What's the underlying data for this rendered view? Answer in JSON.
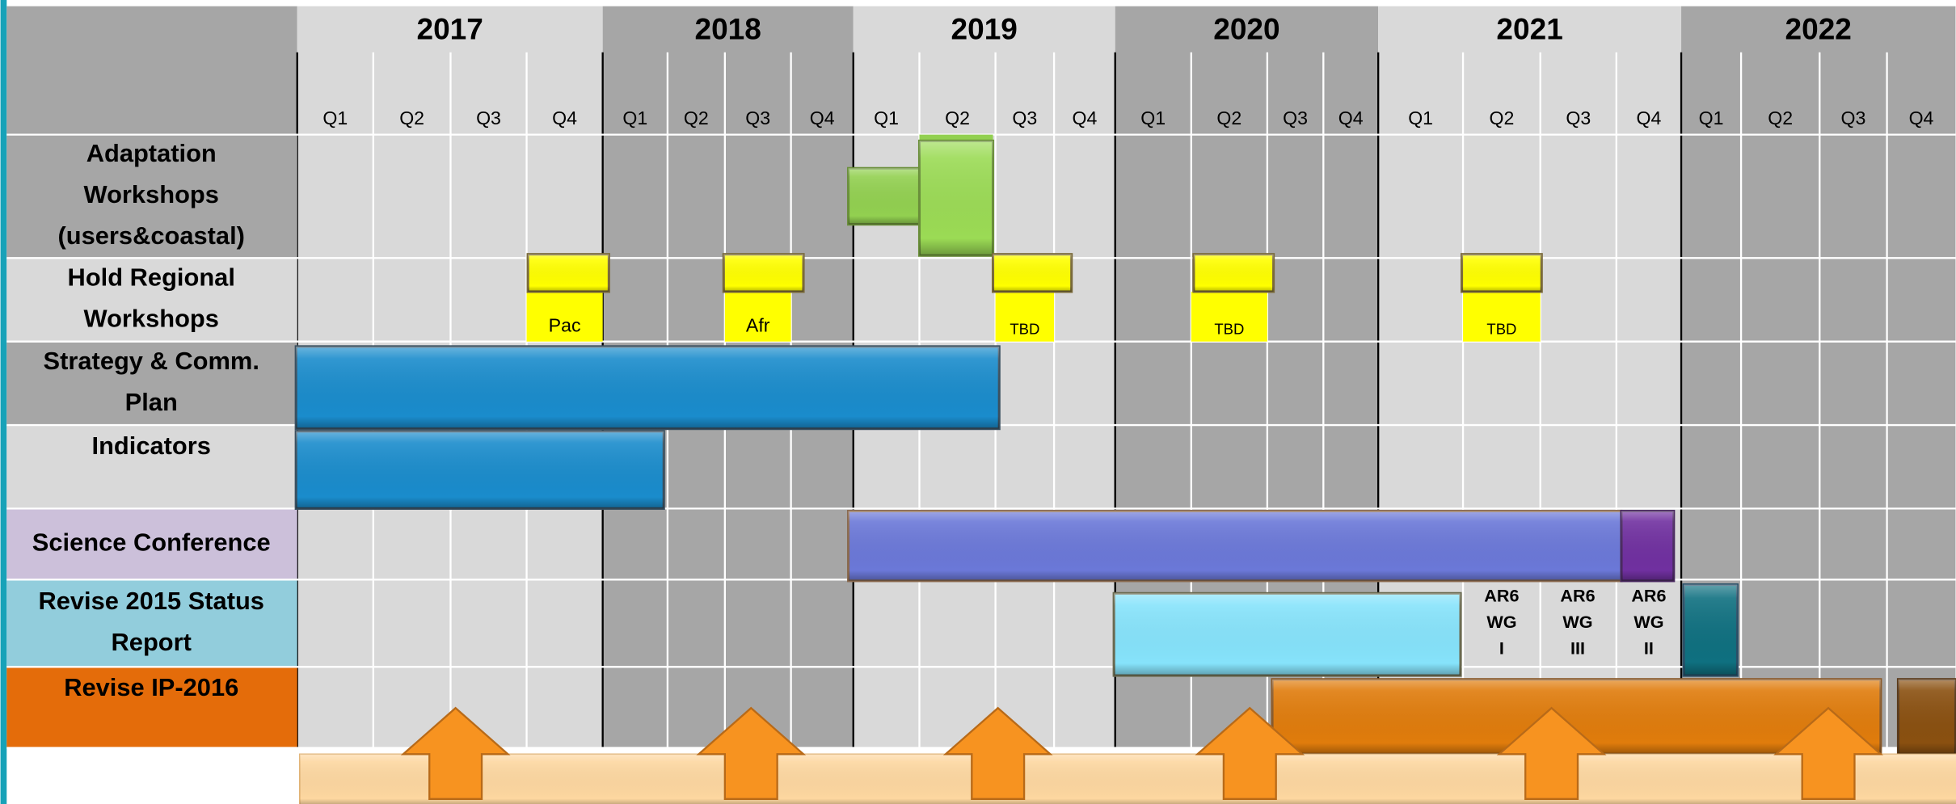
{
  "header": {
    "years": [
      "2017",
      "2018",
      "2019",
      "2020",
      "2021",
      "2022"
    ],
    "quarters": [
      "Q1",
      "Q2",
      "Q3",
      "Q4",
      "Q1",
      "Q2",
      "Q3",
      "Q4",
      "Q1",
      "Q2",
      "Q3",
      "Q4",
      "Q1",
      "Q2",
      "Q3",
      "Q4",
      "Q1",
      "Q2",
      "Q3",
      "Q4",
      "Q1",
      "Q2",
      "Q3",
      "Q4"
    ]
  },
  "rows": [
    [
      "Adaptation",
      "Workshops",
      "(users&coastal)"
    ],
    [
      "Hold Regional",
      "Workshops"
    ],
    [
      "Strategy & Comm.",
      "Plan"
    ],
    [
      "Indicators"
    ],
    [
      "Science Conference"
    ],
    [
      "Revise 2015 Status",
      "Report"
    ],
    [
      "Revise IP-2016"
    ]
  ],
  "workshop_labels": [
    "Pac",
    "Afr",
    "TBD",
    "TBD",
    "TBD"
  ],
  "ar6_labels": [
    [
      "AR6",
      "WG",
      "I"
    ],
    [
      "AR6",
      "WG",
      "III"
    ],
    [
      "AR6",
      "WG",
      "II"
    ]
  ]
}
